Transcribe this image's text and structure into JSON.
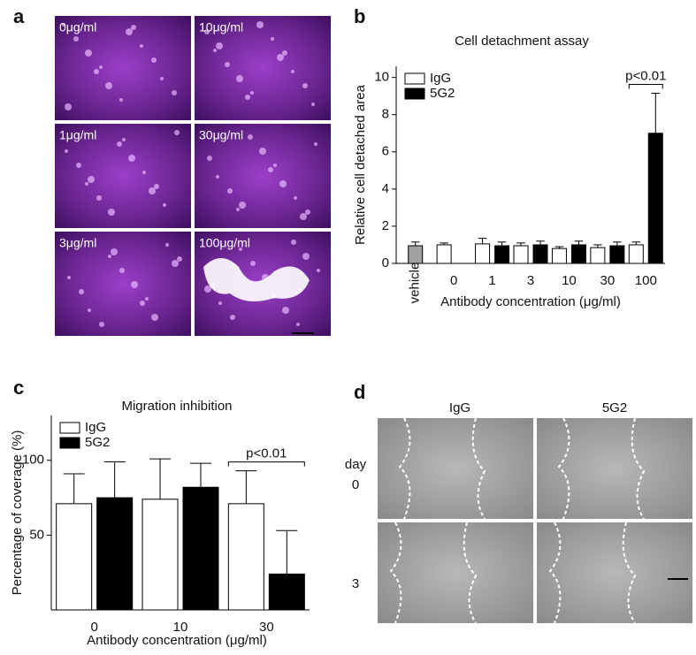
{
  "panel_a": {
    "label": "a",
    "images": [
      "0μg/ml",
      "10μg/ml",
      "1μg/ml",
      "30μg/ml",
      "3μg/ml",
      "100μg/ml"
    ]
  },
  "chart_data": [
    {
      "type": "bar",
      "panel_label": "b",
      "title": "Cell detachment assay",
      "y_label": "Relative cell detached area",
      "x_label": "Antibody concentration (μg/ml)",
      "categories": [
        "vehicle",
        "0",
        "1",
        "3",
        "10",
        "30",
        "100"
      ],
      "vehicle_bar": {
        "value": 0.95,
        "error": 0.2,
        "color": "#a0a0a0"
      },
      "series": [
        {
          "name": "IgG",
          "color": "#ffffff",
          "values": [
            null,
            1.0,
            1.05,
            0.95,
            0.8,
            0.85,
            1.0
          ],
          "errors": [
            null,
            0.1,
            0.3,
            0.15,
            0.1,
            0.15,
            0.15
          ]
        },
        {
          "name": "5G2",
          "color": "#000000",
          "values": [
            null,
            null,
            0.95,
            1.0,
            1.0,
            0.95,
            7.0
          ],
          "errors": [
            null,
            null,
            0.2,
            0.2,
            0.2,
            0.2,
            2.15
          ]
        }
      ],
      "ylim": [
        0,
        10.6
      ],
      "yticks": [
        0,
        2,
        4,
        6,
        8,
        10
      ],
      "legend": "upper left",
      "annotation": {
        "text": "p<0.01",
        "category": 6
      }
    },
    {
      "type": "bar",
      "panel_label": "c",
      "title": "Migration inhibition",
      "y_label": "Percentage of coverage (%)",
      "x_label": "Antibody concentration (μg/ml)",
      "categories": [
        "0",
        "10",
        "30"
      ],
      "series": [
        {
          "name": "IgG",
          "color": "#ffffff",
          "values": [
            71,
            74,
            71
          ],
          "errors": [
            20,
            27,
            22
          ]
        },
        {
          "name": "5G2",
          "color": "#000000",
          "values": [
            75,
            82,
            24
          ],
          "errors": [
            24,
            16,
            29
          ]
        }
      ],
      "ylim": [
        0,
        130
      ],
      "yticks": [
        50,
        100
      ],
      "legend": "upper left",
      "annotation": {
        "text": "p<0.01",
        "category": 2
      }
    }
  ],
  "panel_d": {
    "label": "d",
    "columns": [
      "IgG",
      "5G2"
    ],
    "row_title": "day",
    "rows": [
      "0",
      "3"
    ]
  }
}
